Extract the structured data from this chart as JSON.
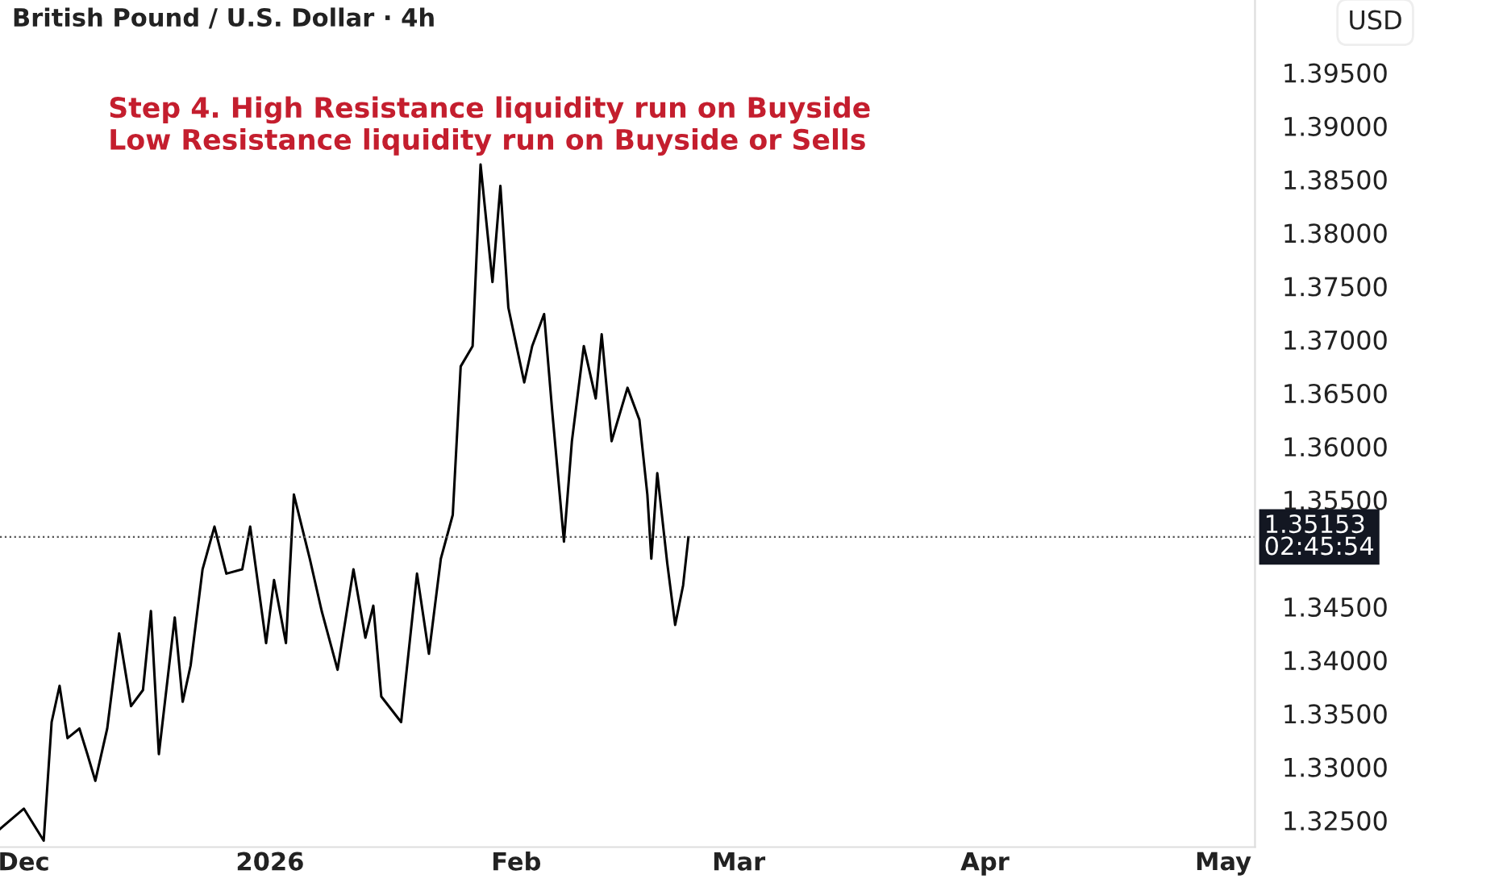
{
  "chart_data": {
    "type": "line",
    "title": "British Pound / U.S. Dollar · 4h",
    "ylabel": "USD",
    "annotations": [
      "Step 4. High Resistance liquidity run on Buyside",
      "Low Resistance liquidity run on Buyside or Sells"
    ],
    "x": [
      "2025-11-28T00:00",
      "2025-12-01T00:00",
      "2025-12-03T12:00",
      "2025-12-04T12:00",
      "2025-12-05T12:00",
      "2025-12-06T12:00",
      "2025-12-08T00:00",
      "2025-12-09T00:00",
      "2025-12-10T00:00",
      "2025-12-11T12:00",
      "2025-12-13T00:00",
      "2025-12-14T12:00",
      "2025-12-16T00:00",
      "2025-12-17T00:00",
      "2025-12-18T00:00",
      "2025-12-20T00:00",
      "2025-12-21T00:00",
      "2025-12-22T00:00",
      "2025-12-23T12:00",
      "2025-12-25T00:00",
      "2025-12-26T12:00",
      "2025-12-28T12:00",
      "2025-12-29T12:00",
      "2025-12-31T12:00",
      "2026-01-01T12:00",
      "2026-01-03T00:00",
      "2026-01-04T00:00",
      "2026-01-06T00:00",
      "2026-01-07T12:00",
      "2026-01-09T12:00",
      "2026-01-11T12:00",
      "2026-01-13T00:00",
      "2026-01-14T00:00",
      "2026-01-15T00:00",
      "2026-01-17T12:00",
      "2026-01-19T12:00",
      "2026-01-21T00:00",
      "2026-01-22T12:00",
      "2026-01-24T00:00",
      "2026-01-25T00:00",
      "2026-01-26T12:00",
      "2026-01-27T12:00",
      "2026-01-29T00:00",
      "2026-01-30T00:00",
      "2026-01-31T00:00",
      "2026-02-02T00:00",
      "2026-02-03T00:00",
      "2026-02-04T12:00",
      "2026-02-05T12:00",
      "2026-02-07T00:00",
      "2026-02-08T00:00",
      "2026-02-09T12:00",
      "2026-02-11T00:00",
      "2026-02-11T18:00",
      "2026-02-13T00:00",
      "2026-02-15T00:00",
      "2026-02-16T12:00",
      "2026-02-17T12:00",
      "2026-02-18T00:00",
      "2026-02-18T18:00",
      "2026-02-20T00:00",
      "2026-02-21T00:00",
      "2026-02-22T00:00",
      "2026-02-22T16:00"
    ],
    "series": [
      {
        "color": "#000000",
        "values": [
          1.3242,
          1.3261,
          1.3231,
          1.3342,
          1.3376,
          1.3327,
          1.3336,
          1.3312,
          1.3287,
          1.3336,
          1.3425,
          1.3357,
          1.3372,
          1.3446,
          1.3312,
          1.344,
          1.3361,
          1.3395,
          1.3485,
          1.3525,
          1.3481,
          1.3485,
          1.3525,
          1.3416,
          1.3475,
          1.3416,
          1.3555,
          1.3495,
          1.3446,
          1.3391,
          1.3485,
          1.3421,
          1.3451,
          1.3366,
          1.3342,
          1.3481,
          1.3406,
          1.3495,
          1.3536,
          1.3675,
          1.3694,
          1.3864,
          1.3754,
          1.3844,
          1.373,
          1.366,
          1.3694,
          1.3724,
          1.3635,
          1.3511,
          1.3605,
          1.3694,
          1.3645,
          1.3705,
          1.3605,
          1.3655,
          1.3625,
          1.3555,
          1.3495,
          1.3575,
          1.3491,
          1.3433,
          1.347,
          1.3515
        ]
      }
    ],
    "xlim": [
      "2025-11-28",
      "2026-05-05"
    ],
    "xticks": [
      {
        "value": "2025-12-01",
        "label": "Dec"
      },
      {
        "value": "2026-01-01",
        "label": "2026"
      },
      {
        "value": "2026-02-01",
        "label": "Feb"
      },
      {
        "value": "2026-03-01",
        "label": "Mar"
      },
      {
        "value": "2026-04-01",
        "label": "Apr"
      },
      {
        "value": "2026-05-01",
        "label": "May"
      }
    ],
    "ylim": [
      1.3225,
      1.4018
    ],
    "yticks": [
      {
        "value": 1.325,
        "label": "1.32500"
      },
      {
        "value": 1.33,
        "label": "1.33000"
      },
      {
        "value": 1.335,
        "label": "1.33500"
      },
      {
        "value": 1.34,
        "label": "1.34000"
      },
      {
        "value": 1.345,
        "label": "1.34500"
      },
      {
        "value": 1.355,
        "label": "1.35500"
      },
      {
        "value": 1.36,
        "label": "1.36000"
      },
      {
        "value": 1.365,
        "label": "1.36500"
      },
      {
        "value": 1.37,
        "label": "1.37000"
      },
      {
        "value": 1.375,
        "label": "1.37500"
      },
      {
        "value": 1.38,
        "label": "1.38000"
      },
      {
        "value": 1.385,
        "label": "1.38500"
      },
      {
        "value": 1.39,
        "label": "1.39000"
      },
      {
        "value": 1.395,
        "label": "1.39500"
      }
    ],
    "ref_lines": [
      {
        "axis": "y",
        "value": 1.35153,
        "label": "1.35153\n02:45:54",
        "color": "#555555",
        "line_style": "dotted"
      }
    ],
    "grid": false,
    "legend": false,
    "marker": "none",
    "line_style": "solid"
  }
}
